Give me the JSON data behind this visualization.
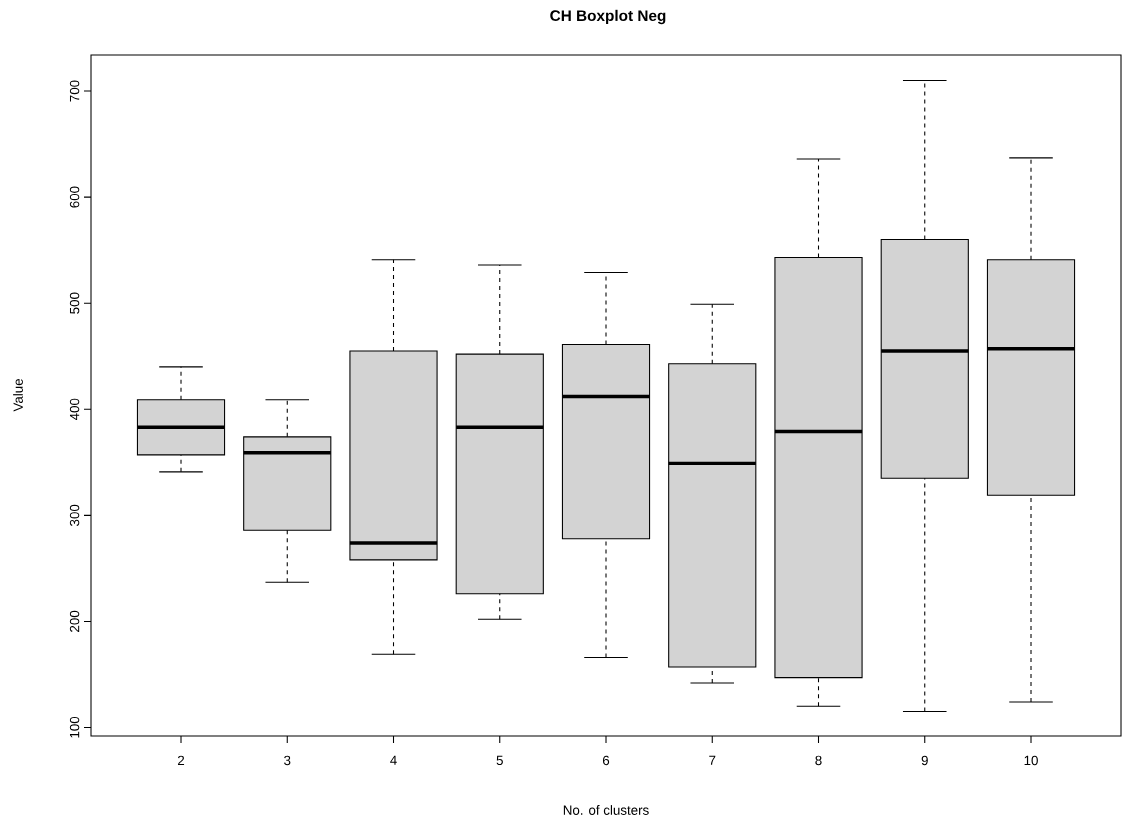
{
  "chart_data": {
    "type": "box",
    "title": "CH Boxplot Neg",
    "xlabel": "No. of clusters",
    "ylabel": "Value",
    "categories": [
      "2",
      "3",
      "4",
      "5",
      "6",
      "7",
      "8",
      "9",
      "10"
    ],
    "color": "#d3d3d3",
    "boxes": [
      {
        "low": 341,
        "q1": 357,
        "median": 383,
        "q3": 409,
        "high": 440
      },
      {
        "low": 237,
        "q1": 286,
        "median": 359,
        "q3": 374,
        "high": 409
      },
      {
        "low": 169,
        "q1": 258,
        "median": 274,
        "q3": 455,
        "high": 541
      },
      {
        "low": 202,
        "q1": 226,
        "median": 383,
        "q3": 452,
        "high": 536
      },
      {
        "low": 166,
        "q1": 278,
        "median": 412,
        "q3": 461,
        "high": 529
      },
      {
        "low": 142,
        "q1": 157,
        "median": 349,
        "q3": 443,
        "high": 499
      },
      {
        "low": 120,
        "q1": 147,
        "median": 379,
        "q3": 543,
        "high": 636
      },
      {
        "low": 115,
        "q1": 335,
        "median": 455,
        "q3": 560,
        "high": 710
      },
      {
        "low": 124,
        "q1": 319,
        "median": 457,
        "q3": 541,
        "high": 637
      }
    ],
    "ylim": [
      92,
      734
    ],
    "yticks": [
      100,
      200,
      300,
      400,
      500,
      600,
      700
    ],
    "grid": false
  }
}
